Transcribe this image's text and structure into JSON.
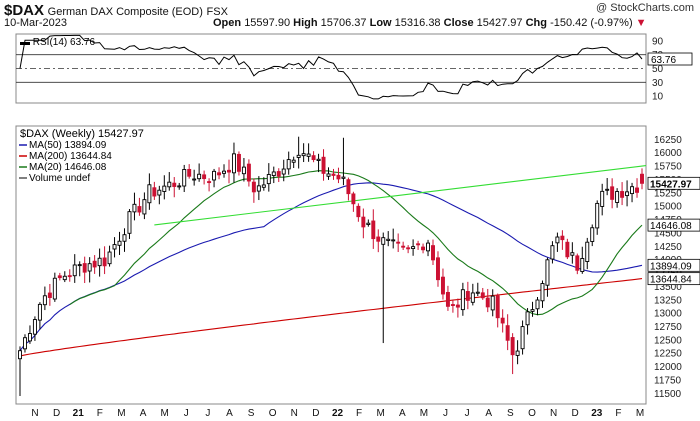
{
  "header": {
    "symbol": "$DAX",
    "name": "German DAX Composite (EOD)",
    "exchange": "FSX",
    "copyright": "@ StockCharts.com",
    "date": "10-Mar-2023",
    "open_label": "Open",
    "open": "15597.90",
    "high_label": "High",
    "high": "15706.37",
    "low_label": "Low",
    "low": "15316.38",
    "close_label": "Close",
    "close": "15427.97",
    "chg_label": "Chg",
    "chg": "-150.42 (-0.97%)"
  },
  "rsi_panel": {
    "legend": "RSI(14) 63.76",
    "ticks": [
      90,
      70,
      50,
      30,
      10
    ],
    "ylim": [
      0,
      100
    ],
    "lines": [
      70,
      50,
      30
    ],
    "last_label": "63.76"
  },
  "price_panel": {
    "legend": [
      {
        "text": "$DAX (Weekly) 15427.97",
        "color": "#000000"
      },
      {
        "text": "MA(50) 13894.09",
        "color": "#1a1ab0"
      },
      {
        "text": "MA(200) 13644.84",
        "color": "#cc0000"
      },
      {
        "text": "MA(20) 14646.08",
        "color": "#1a7a1a"
      },
      {
        "text": "Volume undef",
        "color": "#555555"
      }
    ],
    "ylim": [
      11300,
      16500
    ],
    "yticks": [
      16250,
      16000,
      15750,
      15500,
      15250,
      15000,
      14750,
      14500,
      14250,
      14000,
      13750,
      13500,
      13250,
      13000,
      12750,
      12500,
      12250,
      12000,
      11750,
      11500
    ],
    "last_labels": [
      {
        "text": "15427.97",
        "value": 15427.97,
        "bg": "#ffffff",
        "fg": "#000000",
        "bold": true
      },
      {
        "text": "14646.08",
        "value": 14646.08,
        "bg": "#ffffff",
        "fg": "#000000",
        "bold": false
      },
      {
        "text": "13894.09",
        "value": 13894.09,
        "bg": "#ffffff",
        "fg": "#000000",
        "bold": false
      },
      {
        "text": "13644.84",
        "value": 13644.84,
        "bg": "#ffffff",
        "fg": "#000000",
        "bold": false
      }
    ]
  },
  "x_axis": {
    "labels": [
      "N",
      "D",
      "21",
      "F",
      "M",
      "A",
      "M",
      "J",
      "J",
      "A",
      "S",
      "O",
      "N",
      "D",
      "22",
      "F",
      "M",
      "A",
      "M",
      "J",
      "J",
      "A",
      "S",
      "O",
      "N",
      "D",
      "23",
      "F",
      "M"
    ]
  },
  "colors": {
    "up": "#000000",
    "down": "#cc1133",
    "ma50": "#1a1ab0",
    "ma200": "#cc0000",
    "ma20": "#1a7a1a",
    "trend": "#33dd33",
    "rsi": "#000000"
  },
  "chart_data": {
    "type": "candlestick",
    "title": "$DAX German DAX Composite (EOD) FSX",
    "frequency": "weekly",
    "x_start": "2020-10",
    "x_end": "2023-03",
    "ohlc_keypoints": [
      {
        "t": "2020-10",
        "close": 12300,
        "low": 11450
      },
      {
        "t": "2020-11",
        "close": 13250
      },
      {
        "t": "2020-12",
        "close": 13700
      },
      {
        "t": "2021-01",
        "close": 13900
      },
      {
        "t": "2021-02",
        "close": 14000
      },
      {
        "t": "2021-03",
        "close": 14700
      },
      {
        "t": "2021-04",
        "close": 15250
      },
      {
        "t": "2021-05",
        "close": 15400
      },
      {
        "t": "2021-06",
        "close": 15600
      },
      {
        "t": "2021-07",
        "close": 15550
      },
      {
        "t": "2021-08",
        "close": 15850
      },
      {
        "t": "2021-09",
        "close": 15300
      },
      {
        "t": "2021-10",
        "close": 15650
      },
      {
        "t": "2021-11",
        "close": 16100,
        "high": 16300
      },
      {
        "t": "2021-12",
        "close": 15700
      },
      {
        "t": "2022-01",
        "close": 15500,
        "high": 16280
      },
      {
        "t": "2022-02",
        "close": 14700
      },
      {
        "t": "2022-03",
        "close": 14300,
        "low": 12440
      },
      {
        "t": "2022-04",
        "close": 14100
      },
      {
        "t": "2022-05",
        "close": 14400
      },
      {
        "t": "2022-06",
        "close": 13000
      },
      {
        "t": "2022-07",
        "close": 13450
      },
      {
        "t": "2022-08",
        "close": 13200
      },
      {
        "t": "2022-09",
        "close": 12200,
        "low": 11860
      },
      {
        "t": "2022-10",
        "close": 13250
      },
      {
        "t": "2022-11",
        "close": 14400
      },
      {
        "t": "2022-12",
        "close": 13900
      },
      {
        "t": "2023-01",
        "close": 15150
      },
      {
        "t": "2023-02",
        "close": 15300
      },
      {
        "t": "2023-03",
        "open": 15597.9,
        "high": 15706.37,
        "low": 15316.38,
        "close": 15427.97
      }
    ],
    "series": [
      {
        "name": "MA(50)",
        "last": 13894.09
      },
      {
        "name": "MA(200)",
        "last": 13644.84
      },
      {
        "name": "MA(20)",
        "last": 14646.08
      },
      {
        "name": "RSI(14)",
        "last": 63.76
      }
    ]
  }
}
